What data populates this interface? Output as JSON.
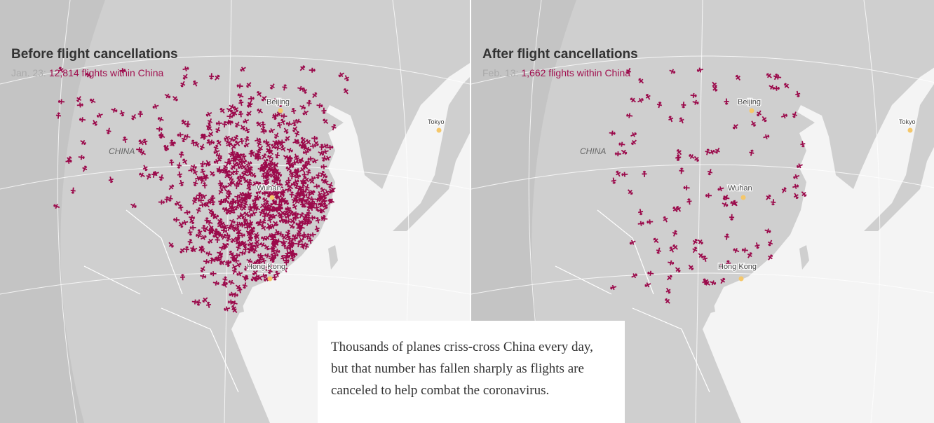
{
  "panels": [
    {
      "title": "Before flight cancellations",
      "date": "Jan. 23:",
      "count": "12,814 flights within China",
      "country": "CHINA",
      "cities": [
        "Beijing",
        "Wuhan",
        "Hong Kong",
        "Tokyo"
      ]
    },
    {
      "title": "After flight cancellations",
      "date": "Feb. 13:",
      "count": "1,662 flights within China",
      "country": "CHINA",
      "cities": [
        "Beijing",
        "Wuhan",
        "Hong Kong",
        "Tokyo"
      ]
    }
  ],
  "caption": "Thousands of planes criss-cross China every day, but that number has fallen sharply as flights are canceled to help combat the coronavirus."
}
